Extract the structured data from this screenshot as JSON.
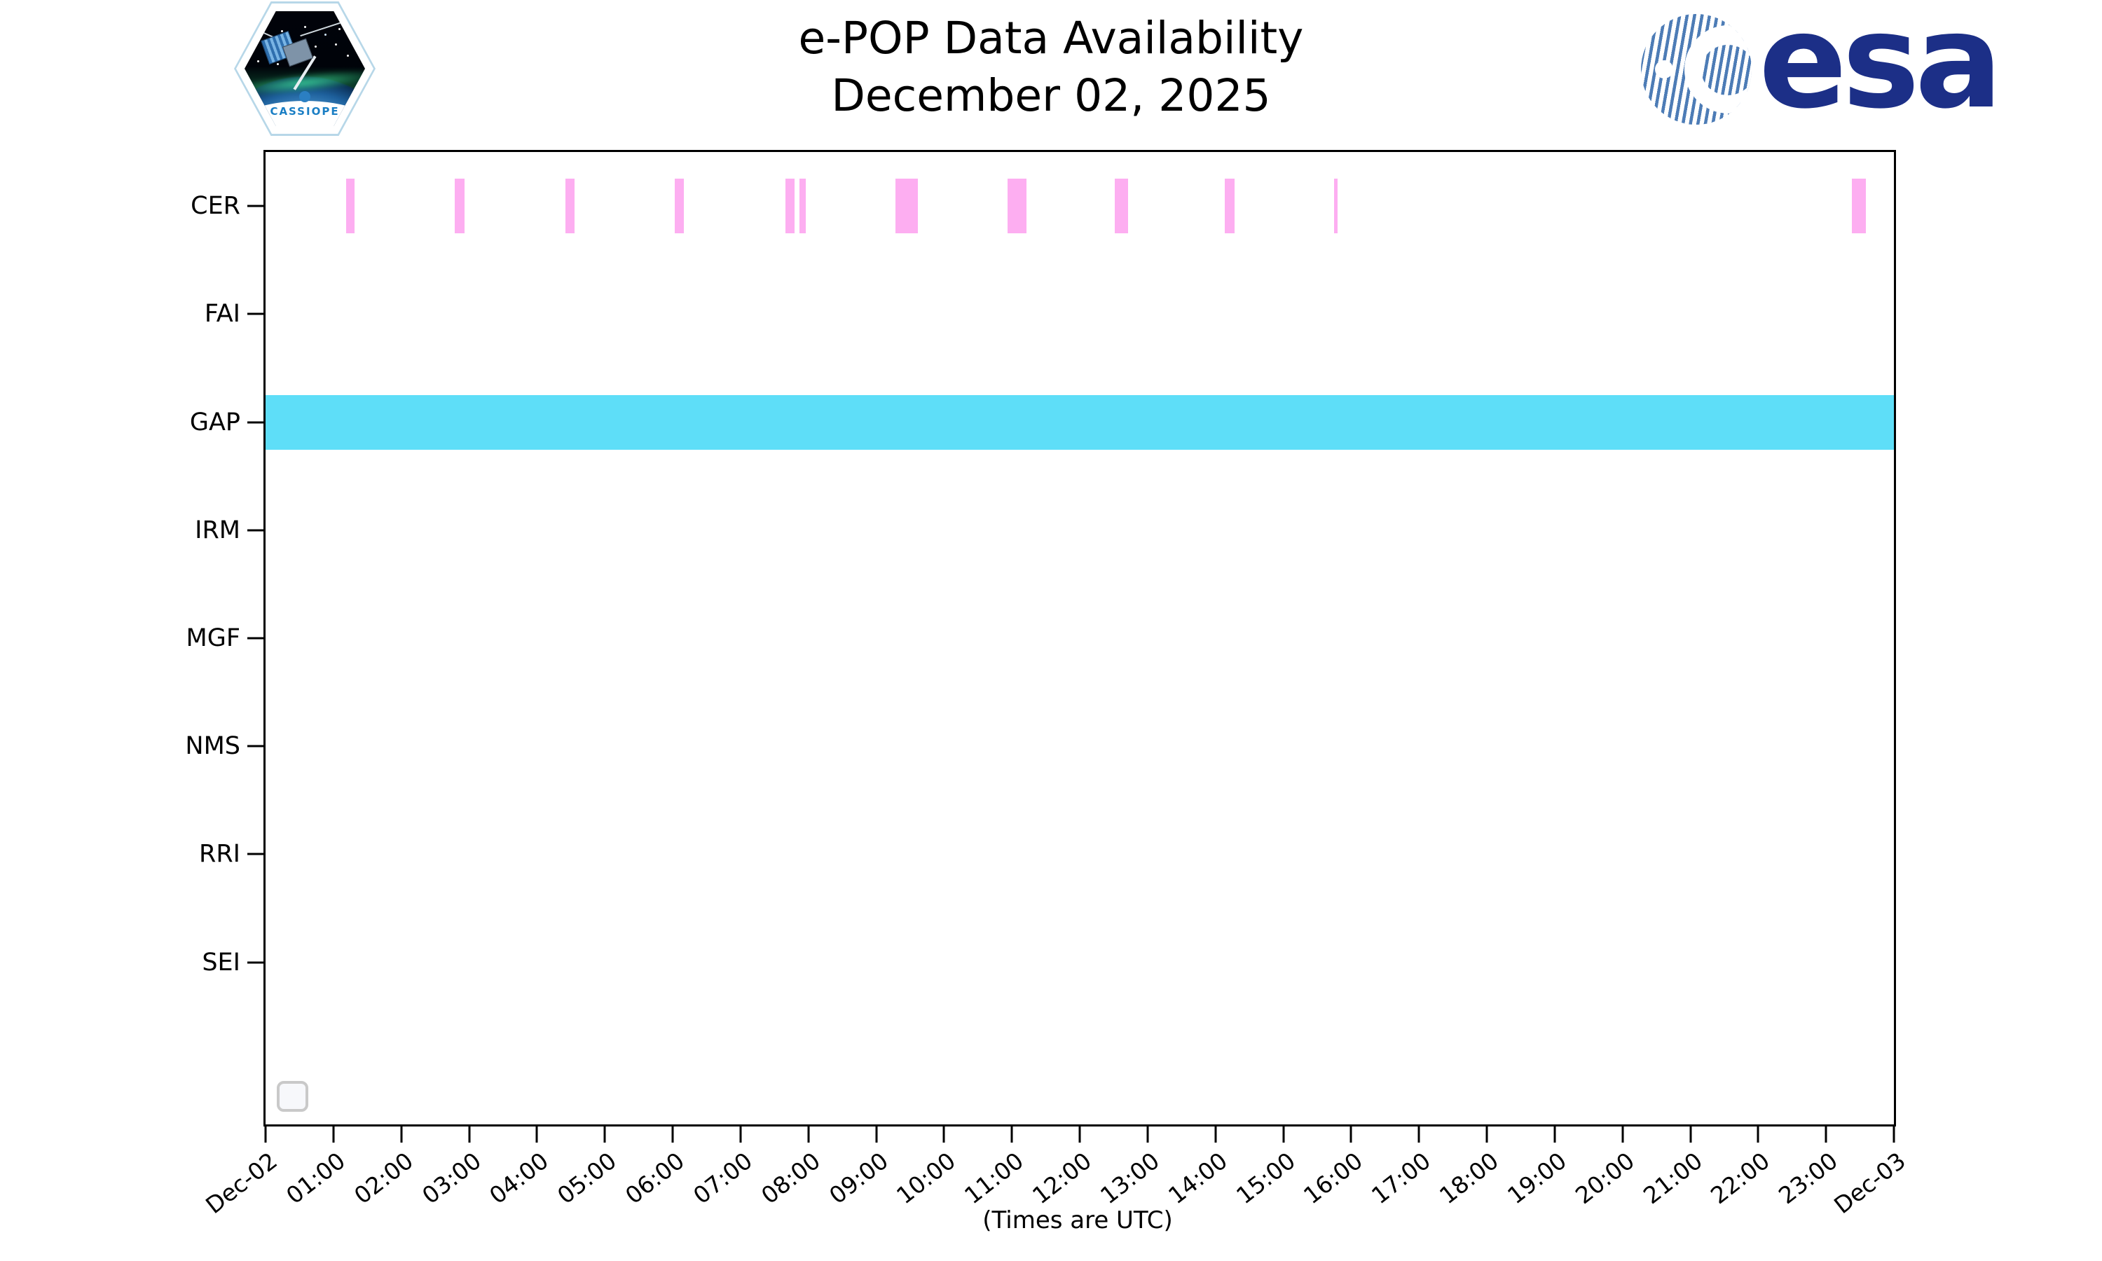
{
  "header": {
    "cassiope_patch_label": "CASSIOPE",
    "esa_logo_text": "esa"
  },
  "colors": {
    "cer_bar": "#FDAEF1",
    "gap_bar": "#5EDEF8",
    "esa_navy": "#1C2F87",
    "axis": "#000000"
  },
  "chart_data": {
    "type": "bar",
    "variant": "timeline-availability",
    "title": "e-POP Data Availability",
    "subtitle": "December 02, 2025",
    "xlabel": "(Times are UTC)",
    "grid": false,
    "x_axis": {
      "units": "hours UTC",
      "range_hours": [
        0,
        24
      ],
      "tick_interval_hours": 1,
      "tick_labels": [
        "Dec-02",
        "01:00",
        "02:00",
        "03:00",
        "04:00",
        "05:00",
        "06:00",
        "07:00",
        "08:00",
        "09:00",
        "10:00",
        "11:00",
        "12:00",
        "13:00",
        "14:00",
        "15:00",
        "16:00",
        "17:00",
        "18:00",
        "19:00",
        "20:00",
        "21:00",
        "22:00",
        "23:00",
        "Dec-03"
      ]
    },
    "categories": [
      "CER",
      "FAI",
      "GAP",
      "IRM",
      "MGF",
      "NMS",
      "RRI",
      "SEI"
    ],
    "row_slots": 9,
    "bar_colors": {
      "CER": "#FDAEF1",
      "GAP": "#5EDEF8"
    },
    "availability": [
      {
        "instrument": "CER",
        "intervals": [
          {
            "start": "01:11",
            "end": "01:19"
          },
          {
            "start": "02:47",
            "end": "02:56"
          },
          {
            "start": "04:25",
            "end": "04:33"
          },
          {
            "start": "06:02",
            "end": "06:10"
          },
          {
            "start": "07:40",
            "end": "07:48"
          },
          {
            "start": "07:52",
            "end": "07:58"
          },
          {
            "start": "09:17",
            "end": "09:37"
          },
          {
            "start": "10:56",
            "end": "11:13"
          },
          {
            "start": "12:31",
            "end": "12:43"
          },
          {
            "start": "14:08",
            "end": "14:17"
          },
          {
            "start": "15:45",
            "end": "15:48"
          },
          {
            "start": "23:23",
            "end": "23:35"
          }
        ]
      },
      {
        "instrument": "FAI",
        "intervals": []
      },
      {
        "instrument": "GAP",
        "intervals": [
          {
            "start": "00:00",
            "end": "24:00"
          }
        ]
      },
      {
        "instrument": "IRM",
        "intervals": []
      },
      {
        "instrument": "MGF",
        "intervals": []
      },
      {
        "instrument": "NMS",
        "intervals": []
      },
      {
        "instrument": "RRI",
        "intervals": []
      },
      {
        "instrument": "SEI",
        "intervals": []
      }
    ],
    "legend": {
      "visible": true,
      "entries": []
    }
  }
}
